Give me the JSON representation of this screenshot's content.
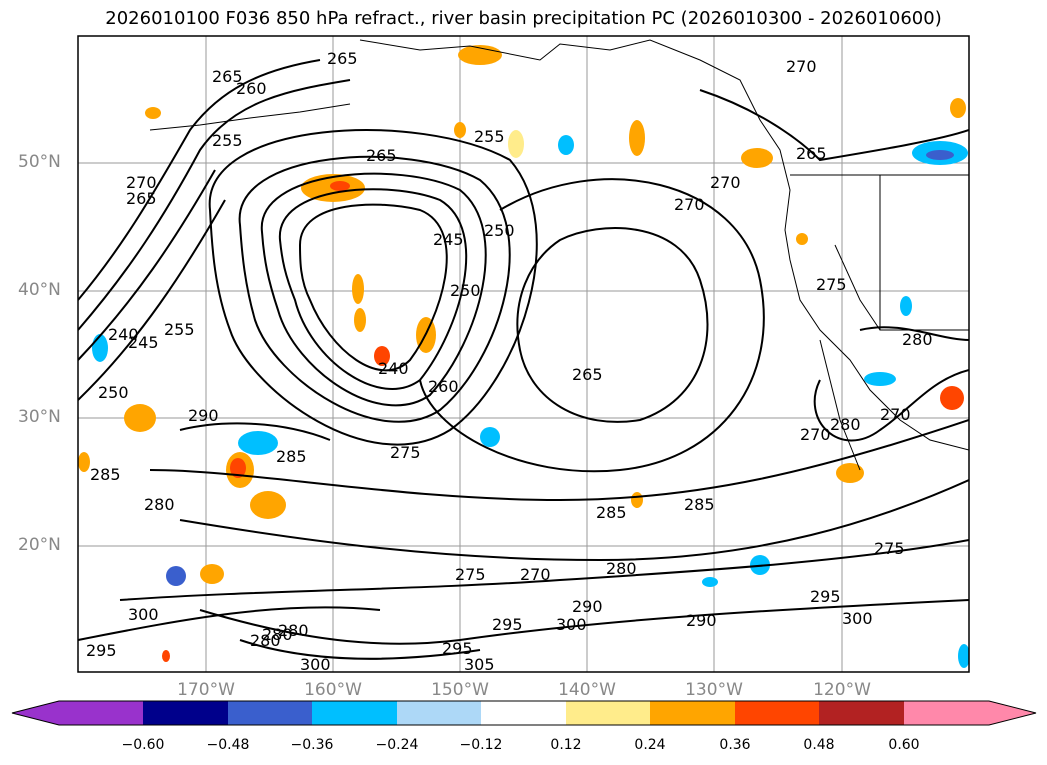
{
  "title": "2026010100 F036 850 hPa refract., river basin precipitation PC (2026010300 - 2026010600)",
  "lat_labels": [
    "50°N",
    "40°N",
    "30°N",
    "20°N"
  ],
  "lon_labels": [
    "170°W",
    "160°W",
    "150°W",
    "140°W",
    "130°W",
    "120°W"
  ],
  "colorbar": {
    "ticks": [
      "−0.60",
      "−0.48",
      "−0.36",
      "−0.24",
      "−0.12",
      "0.12",
      "0.24",
      "0.36",
      "0.48",
      "0.60"
    ],
    "colors": [
      "#9932cc",
      "#00008b",
      "#3a5fcd",
      "#00bfff",
      "#add8f7",
      "#ffffff",
      "#ffec8b",
      "#ffa500",
      "#ff4500",
      "#b22222",
      "#ff88aa"
    ]
  },
  "contour_labels": [
    "265",
    "265",
    "260",
    "255",
    "255",
    "265",
    "265",
    "270",
    "270",
    "270",
    "265",
    "270",
    "245",
    "250",
    "250",
    "255",
    "240",
    "245",
    "250",
    "260",
    "240",
    "290",
    "285",
    "275",
    "285",
    "280",
    "265",
    "270",
    "280",
    "270",
    "280",
    "275",
    "285",
    "285",
    "280",
    "275",
    "270",
    "300",
    "295",
    "290",
    "290",
    "295",
    "300",
    "295",
    "305",
    "300",
    "275",
    "295",
    "300",
    "280",
    "280",
    "280"
  ]
}
